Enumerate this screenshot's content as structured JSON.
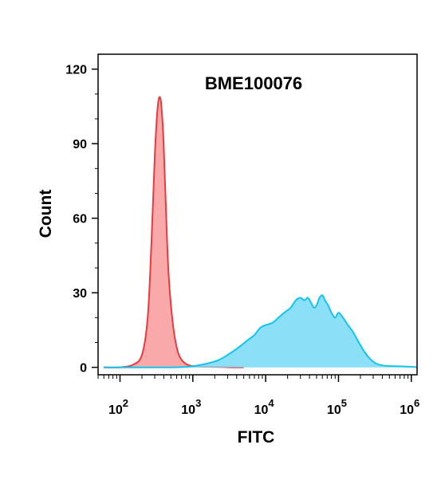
{
  "chart_data": {
    "type": "area",
    "title": "BME100076",
    "xlabel": "FITC",
    "ylabel": "Count",
    "xscale": "log",
    "xlim": [
      50,
      1200000
    ],
    "ylim": [
      -3,
      126
    ],
    "grid": false,
    "legend": "none",
    "yticks": [
      {
        "value": 0,
        "label": "0"
      },
      {
        "value": 30,
        "label": "30"
      },
      {
        "value": 60,
        "label": "60"
      },
      {
        "value": 90,
        "label": "90"
      },
      {
        "value": 120,
        "label": "120"
      }
    ],
    "xticks": [
      {
        "value": 100,
        "base": "10",
        "exp": "2"
      },
      {
        "value": 1000,
        "base": "10",
        "exp": "3"
      },
      {
        "value": 10000,
        "base": "10",
        "exp": "4"
      },
      {
        "value": 100000,
        "base": "10",
        "exp": "5"
      },
      {
        "value": 1000000,
        "base": "10",
        "exp": "6"
      }
    ],
    "series": [
      {
        "fill": "#f9a0a2",
        "stroke": "#e83a3f",
        "x": [
          60,
          100,
          150,
          200,
          240,
          270,
          300,
          330,
          360,
          390,
          420,
          460,
          520,
          600,
          700,
          850,
          1000,
          1300,
          1800,
          2500,
          3500,
          5000
        ],
        "y": [
          0,
          0,
          1,
          5,
          20,
          50,
          85,
          105,
          108,
          95,
          70,
          40,
          20,
          8,
          3,
          1,
          0.5,
          0.3,
          0.2,
          0.1,
          0,
          0
        ]
      },
      {
        "fill": "#7edcf5",
        "stroke": "#12c4f0",
        "x": [
          60,
          500,
          900,
          1300,
          1800,
          2300,
          3000,
          3800,
          4700,
          5700,
          7000,
          8500,
          10000,
          12500,
          15000,
          18000,
          22000,
          26000,
          30000,
          34000,
          38000,
          42000,
          46000,
          50000,
          55000,
          60000,
          65000,
          72000,
          80000,
          90000,
          100000,
          115000,
          135000,
          160000,
          190000,
          230000,
          280000,
          330000,
          400000,
          500000,
          700000,
          1000000,
          1200000
        ],
        "y": [
          0,
          0,
          0.3,
          1,
          2,
          3,
          5,
          7,
          9,
          11,
          13,
          16,
          17,
          18,
          20,
          22,
          24,
          27,
          28,
          27,
          28,
          26,
          24,
          25,
          28,
          29,
          27,
          25,
          22,
          20,
          22,
          20,
          17,
          14,
          10,
          6,
          3,
          1.5,
          0.8,
          0.5,
          0.4,
          0.2,
          0
        ]
      }
    ]
  }
}
